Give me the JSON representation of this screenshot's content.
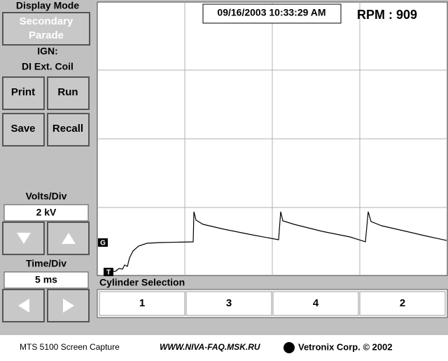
{
  "sidebar": {
    "display_mode_label": "Display Mode",
    "display_mode_button": [
      "Secondary",
      "Parade"
    ],
    "ign_label": "IGN:",
    "ign_value": "DI Ext. Coil",
    "buttons": [
      "Print",
      "Run",
      "Save",
      "Recall"
    ],
    "volts_label": "Volts/Div",
    "volts_value": "2 kV",
    "time_label": "Time/Div",
    "time_value": "5 ms"
  },
  "scope": {
    "timestamp": "09/16/2003 10:33:29 AM",
    "rpm": "RPM : 909",
    "markers": [
      "G",
      "T"
    ]
  },
  "cylinders": {
    "label": "Cylinder Selection",
    "buttons": [
      "1",
      "3",
      "4",
      "2"
    ]
  },
  "footer": {
    "left": "MTS 5100 Screen Capture",
    "middle": "WWW.NIVA-FAQ.MSK.RU",
    "right": "Vetronix Corp. © 2002"
  }
}
